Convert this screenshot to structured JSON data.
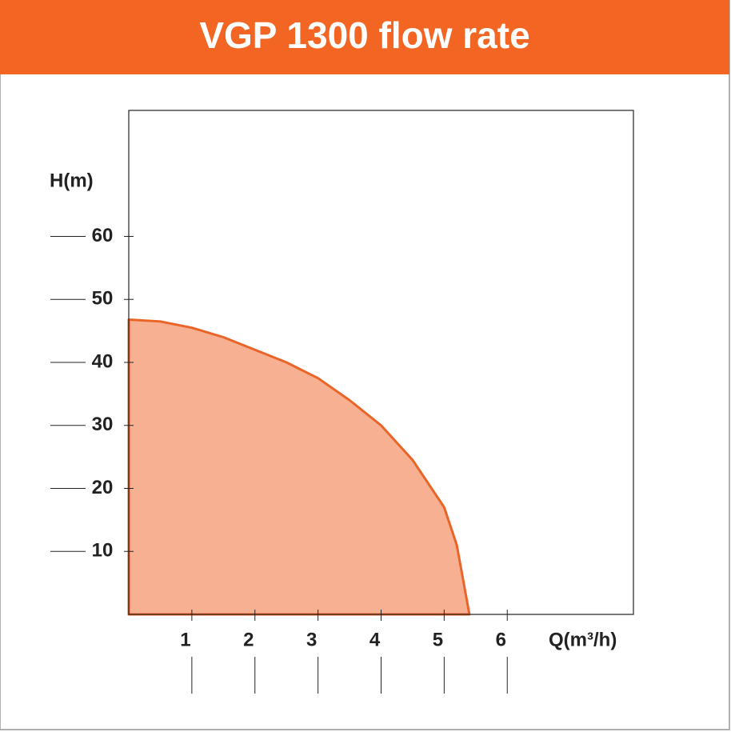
{
  "chart_data": {
    "type": "area",
    "title": "VGP 1300 flow rate",
    "x_label": "Q(m³/h)",
    "y_label": "H(m)",
    "x": [
      0,
      0.5,
      1,
      1.5,
      2,
      2.5,
      3,
      3.5,
      4,
      4.5,
      5,
      5.2,
      5.4
    ],
    "values": [
      46.8,
      46.5,
      45.5,
      44,
      42,
      40,
      37.5,
      34,
      30,
      24.5,
      17,
      11,
      0
    ],
    "color": "#f7b192",
    "line_color": "#ea6428",
    "header_color": "#f26522",
    "xlim": [
      0,
      8
    ],
    "ylim": [
      0,
      80
    ],
    "xticks": [
      1,
      2,
      3,
      4,
      5,
      6
    ],
    "yticks": [
      10,
      20,
      30,
      40,
      50,
      60
    ]
  }
}
